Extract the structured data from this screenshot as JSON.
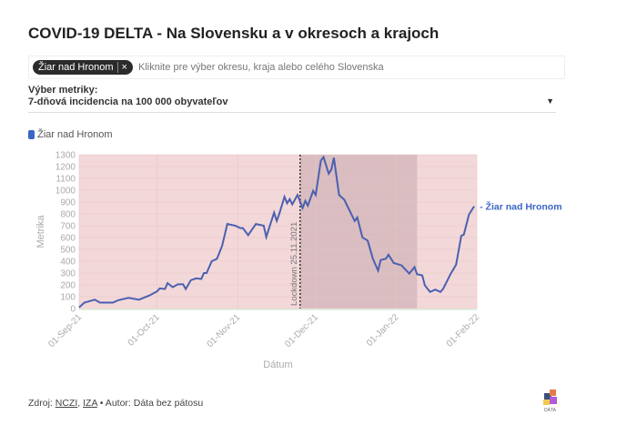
{
  "title": "COVID-19 DELTA - Na Slovensku a v okresoch a krajoch",
  "selector": {
    "chip": "Žiar nad Hronom",
    "remove_icon": "close-icon",
    "placeholder": "Kliknite pre výber okresu, kraja alebo celého Slovenska"
  },
  "metric": {
    "label": "Výber metriky:",
    "value": "7-dňová incidencia na 100 000 obyvateľov",
    "icon": "caret-down-icon"
  },
  "legend": {
    "item": "Žiar nad Hronom",
    "color": "#3a66c4"
  },
  "footer": {
    "source_prefix": "Zdroj:",
    "source1": "NCZI",
    "source2": "IZA",
    "author": "• Autor: Dáta bez pátosu",
    "logo_text": "DÁTA"
  },
  "colors": {
    "line": "#4a60b0",
    "background": "#f3d8d9",
    "lockdown": "#d9bdc0"
  },
  "chart_data": {
    "type": "line",
    "xlabel": "Dátum",
    "ylabel": "Metrika",
    "ylim": [
      0,
      1300
    ],
    "yticks": [
      0,
      100,
      200,
      300,
      400,
      500,
      600,
      700,
      800,
      900,
      1000,
      1100,
      1200,
      1300
    ],
    "xlim": [
      "2021-09-01",
      "2022-02-01"
    ],
    "xticks": [
      {
        "date": "2021-09-01",
        "label": "01-Sep-21"
      },
      {
        "date": "2021-10-01",
        "label": "01-Oct-21"
      },
      {
        "date": "2021-11-01",
        "label": "01-Nov-21"
      },
      {
        "date": "2021-12-01",
        "label": "01-Dec-21"
      },
      {
        "date": "2022-01-01",
        "label": "01-Jan-22"
      },
      {
        "date": "2022-02-01",
        "label": "01-Feb-22"
      }
    ],
    "grid": true,
    "annotation": {
      "label": "Lockdown 25.11.2021",
      "date": "2021-11-25",
      "shaded_until": "2022-01-09"
    },
    "series": [
      {
        "name": "Žiar nad Hronom",
        "end_label": "- Žiar nad Hronom",
        "points": [
          [
            "2021-09-01",
            10
          ],
          [
            "2021-09-03",
            50
          ],
          [
            "2021-09-07",
            75
          ],
          [
            "2021-09-09",
            50
          ],
          [
            "2021-09-14",
            50
          ],
          [
            "2021-09-16",
            70
          ],
          [
            "2021-09-20",
            90
          ],
          [
            "2021-09-24",
            75
          ],
          [
            "2021-09-28",
            110
          ],
          [
            "2021-10-01",
            145
          ],
          [
            "2021-10-02",
            170
          ],
          [
            "2021-10-04",
            165
          ],
          [
            "2021-10-05",
            215
          ],
          [
            "2021-10-07",
            180
          ],
          [
            "2021-10-09",
            205
          ],
          [
            "2021-10-11",
            205
          ],
          [
            "2021-10-12",
            165
          ],
          [
            "2021-10-14",
            240
          ],
          [
            "2021-10-16",
            255
          ],
          [
            "2021-10-18",
            250
          ],
          [
            "2021-10-19",
            300
          ],
          [
            "2021-10-20",
            300
          ],
          [
            "2021-10-22",
            400
          ],
          [
            "2021-10-24",
            420
          ],
          [
            "2021-10-26",
            530
          ],
          [
            "2021-10-28",
            715
          ],
          [
            "2021-10-31",
            700
          ],
          [
            "2021-11-02",
            680
          ],
          [
            "2021-11-03",
            680
          ],
          [
            "2021-11-05",
            620
          ],
          [
            "2021-11-08",
            715
          ],
          [
            "2021-11-11",
            700
          ],
          [
            "2021-11-12",
            605
          ],
          [
            "2021-11-15",
            810
          ],
          [
            "2021-11-16",
            740
          ],
          [
            "2021-11-17",
            800
          ],
          [
            "2021-11-19",
            945
          ],
          [
            "2021-11-20",
            890
          ],
          [
            "2021-11-21",
            925
          ],
          [
            "2021-11-22",
            880
          ],
          [
            "2021-11-24",
            960
          ],
          [
            "2021-11-26",
            850
          ],
          [
            "2021-11-27",
            910
          ],
          [
            "2021-11-28",
            870
          ],
          [
            "2021-11-30",
            995
          ],
          [
            "2021-12-01",
            960
          ],
          [
            "2021-12-03",
            1250
          ],
          [
            "2021-12-04",
            1280
          ],
          [
            "2021-12-06",
            1140
          ],
          [
            "2021-12-07",
            1175
          ],
          [
            "2021-12-08",
            1275
          ],
          [
            "2021-12-10",
            960
          ],
          [
            "2021-12-12",
            920
          ],
          [
            "2021-12-16",
            740
          ],
          [
            "2021-12-17",
            770
          ],
          [
            "2021-12-19",
            600
          ],
          [
            "2021-12-21",
            575
          ],
          [
            "2021-12-23",
            420
          ],
          [
            "2021-12-25",
            320
          ],
          [
            "2021-12-26",
            410
          ],
          [
            "2021-12-28",
            420
          ],
          [
            "2021-12-29",
            455
          ],
          [
            "2021-12-31",
            385
          ],
          [
            "2022-01-03",
            365
          ],
          [
            "2022-01-06",
            295
          ],
          [
            "2022-01-08",
            350
          ],
          [
            "2022-01-09",
            290
          ],
          [
            "2022-01-11",
            280
          ],
          [
            "2022-01-12",
            195
          ],
          [
            "2022-01-14",
            140
          ],
          [
            "2022-01-16",
            160
          ],
          [
            "2022-01-18",
            140
          ],
          [
            "2022-01-19",
            165
          ],
          [
            "2022-01-22",
            295
          ],
          [
            "2022-01-24",
            370
          ],
          [
            "2022-01-26",
            615
          ],
          [
            "2022-01-27",
            625
          ],
          [
            "2022-01-29",
            795
          ],
          [
            "2022-01-31",
            865
          ]
        ]
      }
    ]
  }
}
